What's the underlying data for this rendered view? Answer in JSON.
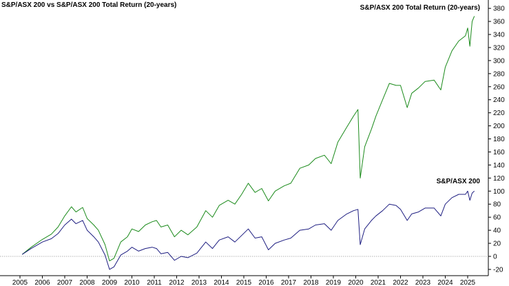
{
  "chart_data": {
    "type": "line",
    "title": "S&P/ASX 200 vs S&P/ASX 200 Total Return (20-years)",
    "xlabel": "",
    "ylabel": "",
    "xlim": [
      2005.0,
      2025.4
    ],
    "ylim": [
      -20,
      380
    ],
    "x_ticks": [
      "2005",
      "2006",
      "2007",
      "2008",
      "2009",
      "2010",
      "2011",
      "2012",
      "2013",
      "2014",
      "2015",
      "2016",
      "2017",
      "2018",
      "2019",
      "2020",
      "2021",
      "2022",
      "2023",
      "2024",
      "2025"
    ],
    "y_ticks": [
      "-20",
      "0",
      "20",
      "40",
      "60",
      "80",
      "100",
      "120",
      "140",
      "160",
      "180",
      "200",
      "220",
      "240",
      "260",
      "280",
      "300",
      "320",
      "340",
      "360",
      "380"
    ],
    "y_axis_position": "right",
    "grid": false,
    "zero_line": true,
    "colors": {
      "total_return": "#1a8a1a",
      "index": "#1c1c80",
      "zero_line": "#999999"
    },
    "series": [
      {
        "name": "S&P/ASX 200 Total Return (20-years)",
        "color": "#1a8a1a",
        "x": [
          2005.1,
          2005.5,
          2006.0,
          2006.4,
          2006.7,
          2007.0,
          2007.3,
          2007.5,
          2007.8,
          2008.0,
          2008.3,
          2008.5,
          2008.8,
          2009.0,
          2009.2,
          2009.5,
          2009.8,
          2010.0,
          2010.3,
          2010.6,
          2010.9,
          2011.1,
          2011.3,
          2011.6,
          2011.9,
          2012.2,
          2012.5,
          2012.9,
          2013.3,
          2013.6,
          2013.9,
          2014.3,
          2014.6,
          2014.9,
          2015.2,
          2015.5,
          2015.8,
          2016.1,
          2016.4,
          2016.8,
          2017.1,
          2017.5,
          2017.9,
          2018.2,
          2018.6,
          2018.9,
          2019.2,
          2019.6,
          2019.9,
          2020.1,
          2020.2,
          2020.4,
          2020.7,
          2020.9,
          2021.2,
          2021.5,
          2021.8,
          2022.0,
          2022.3,
          2022.5,
          2022.8,
          2023.1,
          2023.5,
          2023.8,
          2024.0,
          2024.3,
          2024.6,
          2024.9,
          2025.0,
          2025.1,
          2025.2,
          2025.3
        ],
        "values": [
          3,
          14,
          26,
          34,
          45,
          62,
          76,
          68,
          75,
          58,
          48,
          40,
          18,
          -7,
          -3,
          22,
          30,
          42,
          38,
          48,
          53,
          55,
          45,
          48,
          30,
          40,
          33,
          45,
          70,
          60,
          78,
          86,
          80,
          95,
          112,
          98,
          104,
          85,
          100,
          108,
          112,
          135,
          140,
          150,
          155,
          142,
          175,
          198,
          215,
          225,
          120,
          168,
          195,
          215,
          240,
          265,
          262,
          262,
          228,
          250,
          258,
          268,
          270,
          255,
          290,
          315,
          330,
          338,
          350,
          322,
          360,
          368
        ]
      },
      {
        "name": "S&P/ASX 200",
        "color": "#1c1c80",
        "x": [
          2005.1,
          2005.5,
          2006.0,
          2006.4,
          2006.7,
          2007.0,
          2007.3,
          2007.5,
          2007.8,
          2008.0,
          2008.3,
          2008.5,
          2008.8,
          2009.0,
          2009.2,
          2009.5,
          2009.8,
          2010.0,
          2010.3,
          2010.6,
          2010.9,
          2011.1,
          2011.3,
          2011.6,
          2011.9,
          2012.2,
          2012.5,
          2012.9,
          2013.3,
          2013.6,
          2013.9,
          2014.3,
          2014.6,
          2014.9,
          2015.2,
          2015.5,
          2015.8,
          2016.1,
          2016.4,
          2016.8,
          2017.1,
          2017.5,
          2017.9,
          2018.2,
          2018.6,
          2018.9,
          2019.2,
          2019.6,
          2019.9,
          2020.1,
          2020.2,
          2020.4,
          2020.7,
          2020.9,
          2021.2,
          2021.5,
          2021.8,
          2022.0,
          2022.3,
          2022.5,
          2022.8,
          2023.1,
          2023.5,
          2023.8,
          2024.0,
          2024.3,
          2024.6,
          2024.9,
          2025.0,
          2025.1,
          2025.2,
          2025.3
        ],
        "values": [
          3,
          12,
          22,
          27,
          35,
          48,
          57,
          50,
          55,
          40,
          30,
          22,
          2,
          -20,
          -16,
          2,
          8,
          14,
          8,
          12,
          14,
          12,
          4,
          6,
          -6,
          0,
          -2,
          5,
          22,
          12,
          25,
          30,
          22,
          32,
          42,
          28,
          30,
          10,
          20,
          25,
          28,
          40,
          42,
          48,
          50,
          40,
          55,
          65,
          70,
          72,
          18,
          42,
          55,
          62,
          70,
          80,
          78,
          72,
          55,
          65,
          68,
          74,
          74,
          62,
          80,
          90,
          95,
          95,
          100,
          86,
          97,
          100
        ]
      }
    ],
    "annotations": [
      "S&P/ASX 200 Total Return (20-years)",
      "S&P/ASX 200"
    ]
  }
}
